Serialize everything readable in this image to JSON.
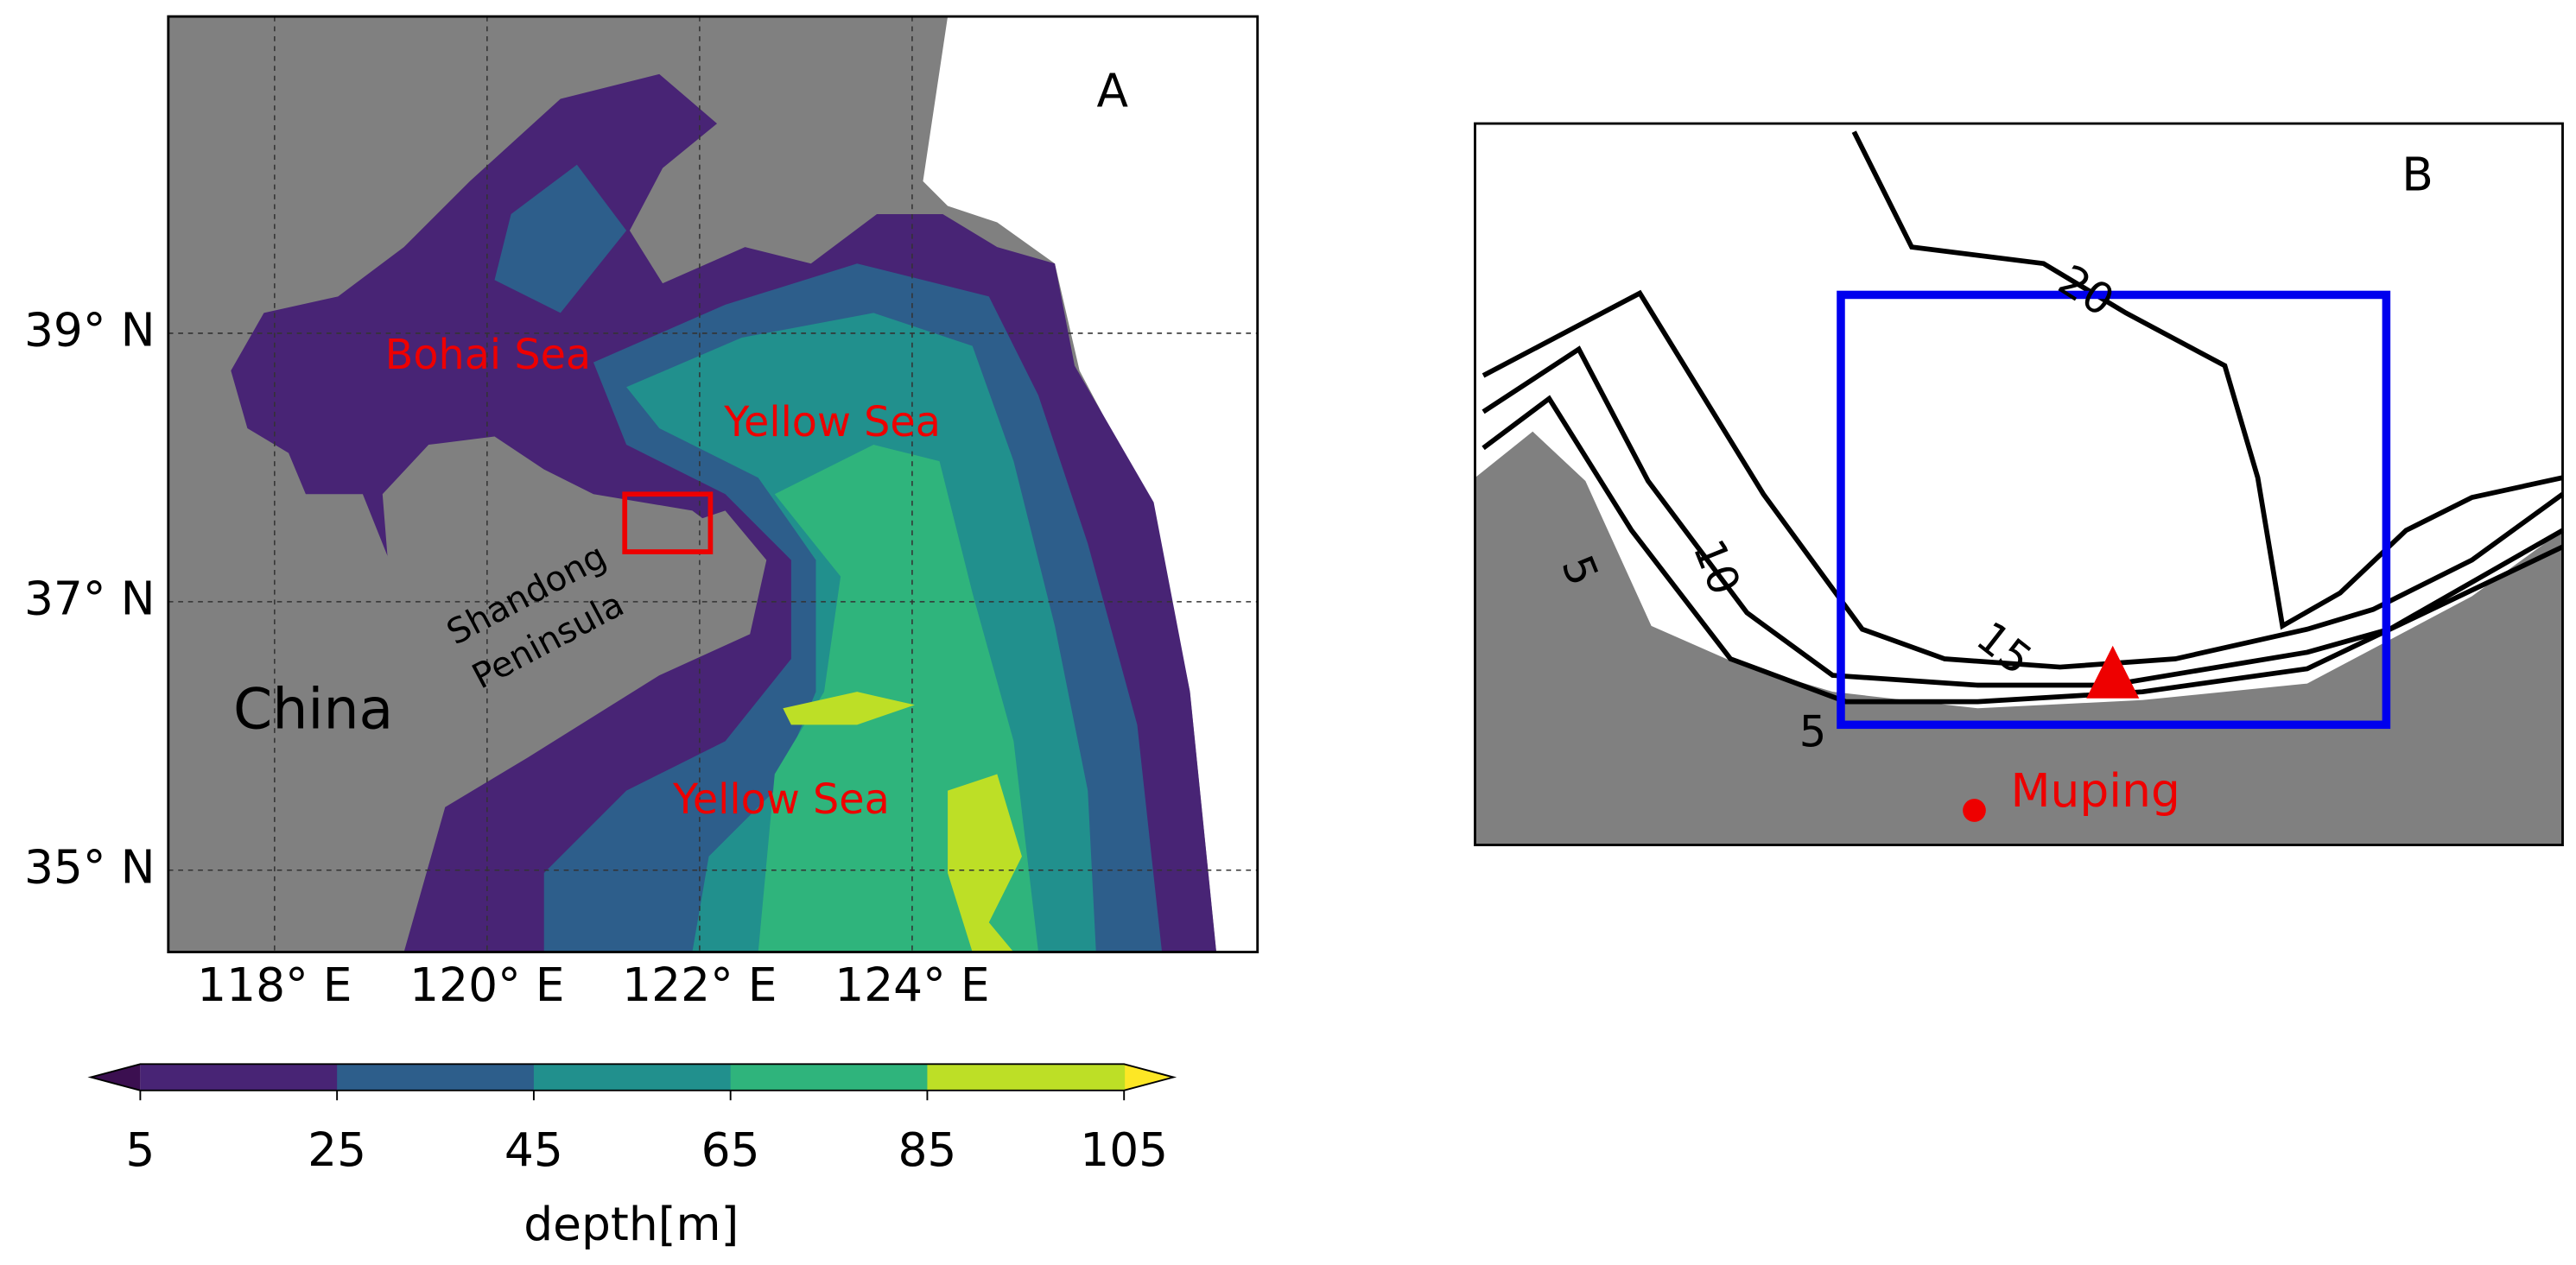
{
  "panel_a": {
    "label": "A",
    "lonlim": [
      117.0,
      127.25
    ],
    "latlim": [
      34.39,
      41.36
    ],
    "lon_ticks": [
      {
        "value": 118,
        "label": "118° E"
      },
      {
        "value": 120,
        "label": "120° E"
      },
      {
        "value": 122,
        "label": "122° E"
      },
      {
        "value": 124,
        "label": "124° E"
      }
    ],
    "lat_ticks": [
      {
        "value": 35,
        "label": "35° N"
      },
      {
        "value": 37,
        "label": "37° N"
      },
      {
        "value": 39,
        "label": "39° N"
      }
    ],
    "places": [
      "Bohai Sea",
      "Yellow Sea",
      "Yellow Sea",
      "China",
      "Shandong",
      "Peninsula"
    ]
  },
  "colorbar": {
    "label": "depth[m]",
    "ticks": [
      5,
      25,
      45,
      65,
      85,
      105
    ],
    "colors": [
      "#482475",
      "#2d5e8b",
      "#21908d",
      "#2fb47c",
      "#bddf26"
    ],
    "extend_colors": [
      "#3b0f50",
      "#fde725"
    ]
  },
  "panel_b": {
    "label": "B",
    "contour_labels": [
      20,
      15,
      10,
      5,
      5
    ],
    "site": "Muping"
  }
}
